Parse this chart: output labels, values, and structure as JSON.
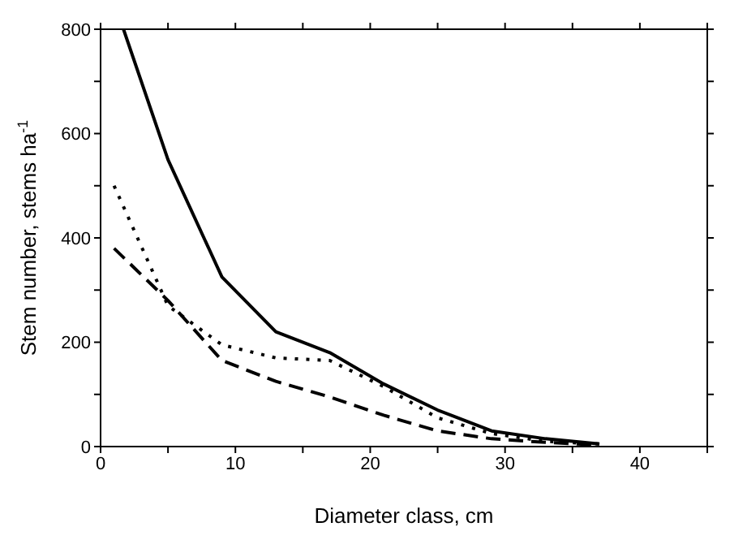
{
  "chart_data": {
    "type": "line",
    "xlabel": "Diameter class, cm",
    "ylabel": "Stem number, stems ha$^{-1}$",
    "x": [
      1,
      5,
      9,
      13,
      17,
      21,
      25,
      29,
      33,
      37
    ],
    "series": [
      {
        "color": "#000000",
        "line_style": "solid",
        "x": [
          1.7,
          5,
          9,
          13,
          17,
          21,
          25,
          29,
          33,
          37
        ],
        "values": [
          800,
          550,
          325,
          220,
          180,
          120,
          70,
          30,
          15,
          5
        ]
      },
      {
        "color": "#000000",
        "line_style": "dotted",
        "values": [
          500,
          270,
          195,
          170,
          165,
          115,
          55,
          25,
          10,
          5
        ]
      },
      {
        "color": "#000000",
        "line_style": "dashed",
        "values": [
          380,
          280,
          165,
          125,
          95,
          60,
          30,
          15,
          8,
          3
        ]
      }
    ],
    "xlim": [
      0,
      45
    ],
    "xticks": [
      0,
      {
        "value": 5,
        "label": null
      },
      10,
      {
        "value": 15,
        "label": null
      },
      20,
      {
        "value": 25,
        "label": null
      },
      30,
      {
        "value": 35,
        "label": null
      },
      40,
      {
        "value": 45,
        "label": null
      }
    ],
    "ylim": [
      0,
      800
    ],
    "yticks": [
      0,
      {
        "value": 100,
        "label": null
      },
      200,
      {
        "value": 300,
        "label": null
      },
      400,
      {
        "value": 500,
        "label": null
      },
      600,
      {
        "value": 700,
        "label": null
      },
      800
    ],
    "legend": false,
    "marker": "none"
  }
}
